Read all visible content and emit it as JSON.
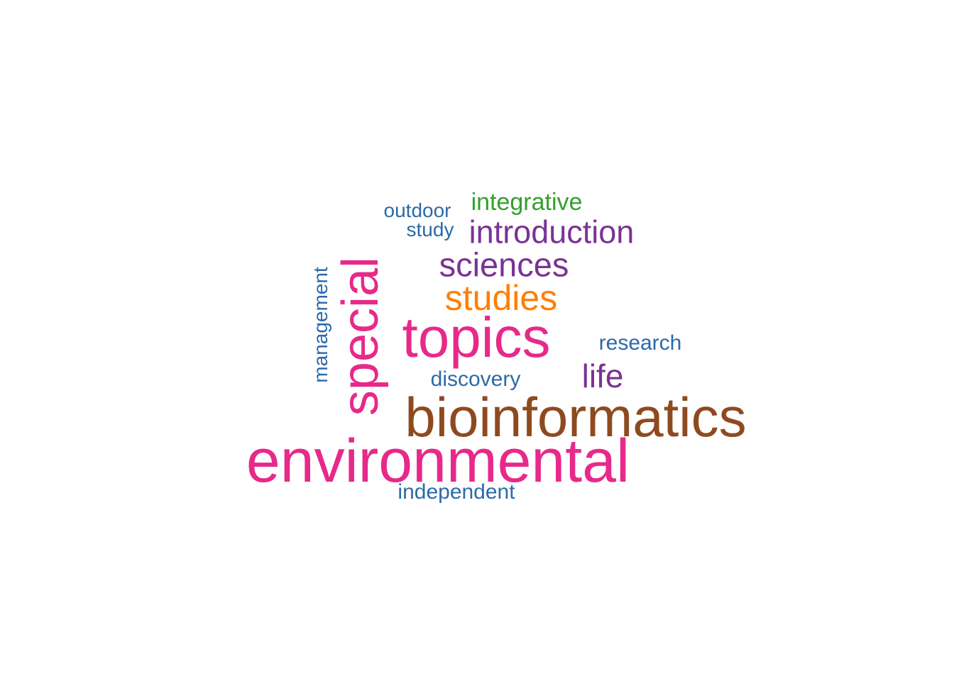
{
  "words": {
    "environmental": {
      "text": "environmental",
      "color": "#E7298A"
    },
    "bioinformatics": {
      "text": "bioinformatics",
      "color": "#8E4A1F"
    },
    "topics": {
      "text": "topics",
      "color": "#E7298A"
    },
    "special": {
      "text": "special",
      "color": "#E7298A"
    },
    "studies": {
      "text": "studies",
      "color": "#FF7F00"
    },
    "sciences": {
      "text": "sciences",
      "color": "#7B3294"
    },
    "introduction": {
      "text": "introduction",
      "color": "#7B3294"
    },
    "life": {
      "text": "life",
      "color": "#7B3294"
    },
    "integrative": {
      "text": "integrative",
      "color": "#33A02C"
    },
    "outdoor": {
      "text": "outdoor",
      "color": "#2C6AA8"
    },
    "study": {
      "text": "study",
      "color": "#2C6AA8"
    },
    "management": {
      "text": "management",
      "color": "#2C6AA8"
    },
    "research": {
      "text": "research",
      "color": "#2C6AA8"
    },
    "discovery": {
      "text": "discovery",
      "color": "#2C6AA8"
    },
    "independent": {
      "text": "independent",
      "color": "#2C6AA8"
    }
  }
}
